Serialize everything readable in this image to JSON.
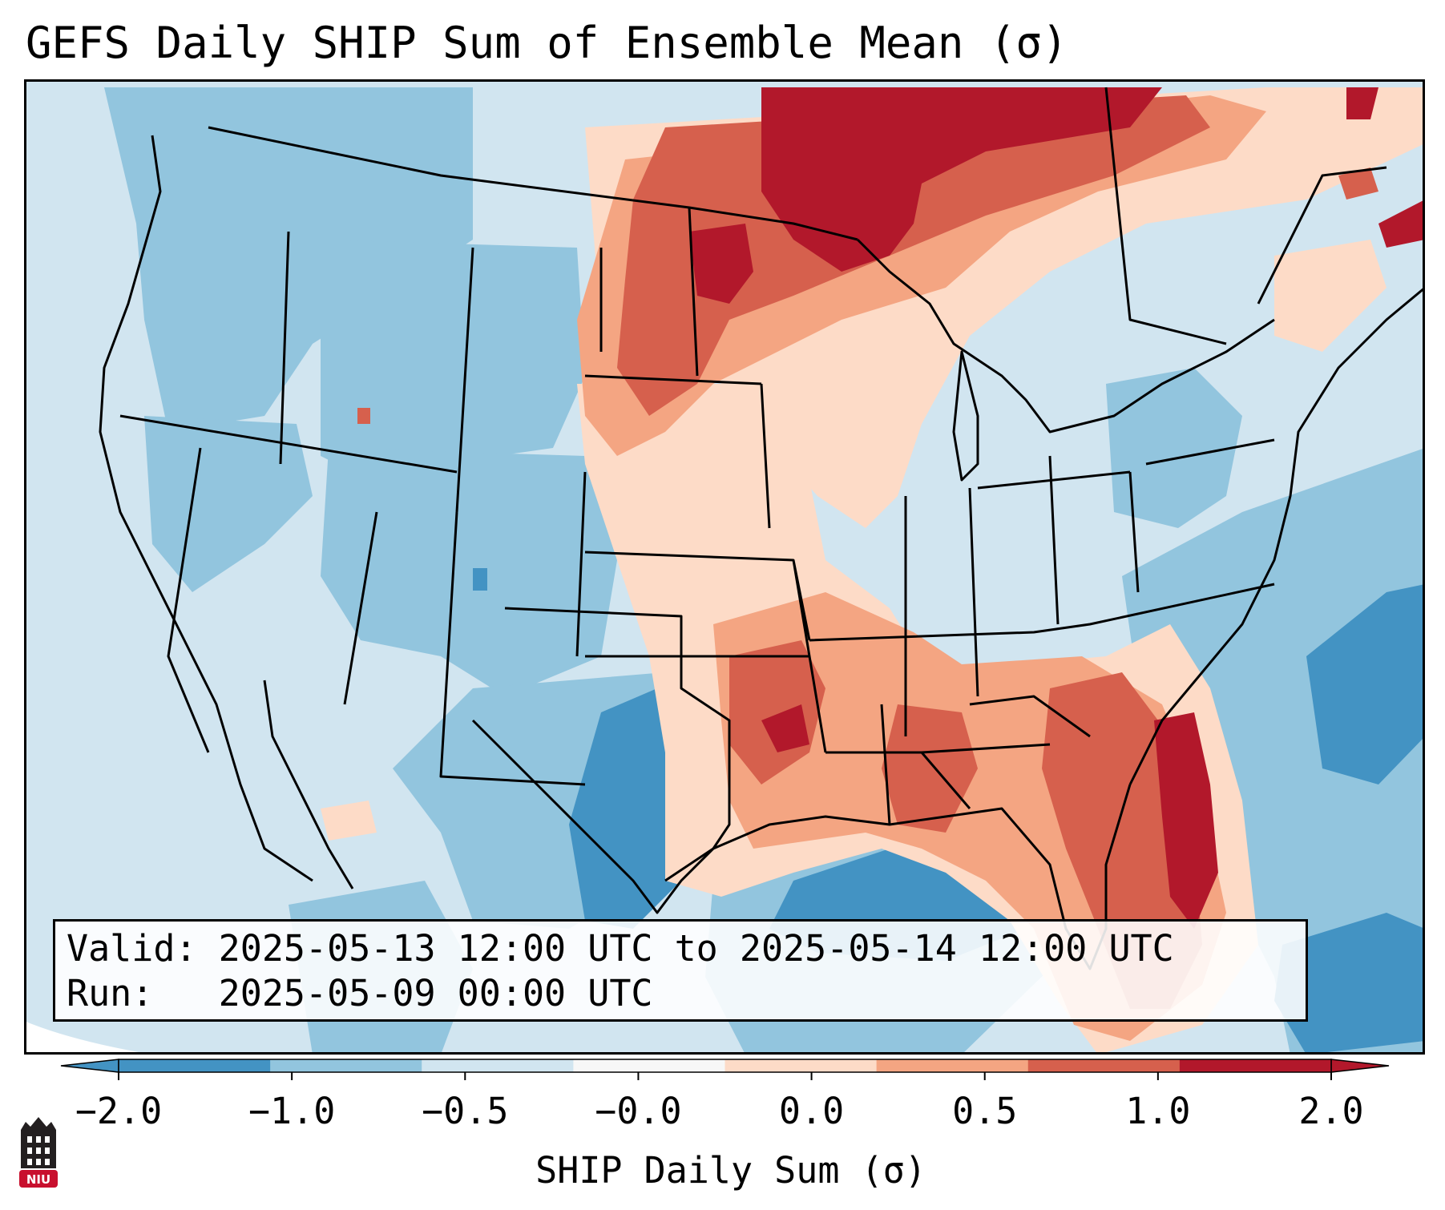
{
  "title": "GEFS Daily SHIP Sum of Ensemble Mean (σ)",
  "info": {
    "valid_label": "Valid:",
    "valid_value": "2025-05-13 12:00 UTC to 2025-05-14 12:00 UTC",
    "run_label": "Run:",
    "run_value": "2025-05-09 00:00 UTC"
  },
  "colorbar": {
    "label": "SHIP Daily Sum (σ)",
    "ticks": [
      "−2.0",
      "−1.0",
      "−0.5",
      "−0.0",
      "0.0",
      "0.5",
      "1.0",
      "2.0"
    ],
    "colors": [
      "#4393c3",
      "#92c5de",
      "#d1e5f0",
      "#f7f7f7",
      "#fddbc7",
      "#f4a582",
      "#d6604d",
      "#b2182b"
    ],
    "extend": "both"
  },
  "logo": {
    "text": "NIU",
    "color": "#c8102e"
  },
  "colors": {
    "ocean": "#d1e5f0",
    "strong_negative": "#4393c3",
    "moderate_negative": "#92c5de",
    "weak_negative": "#d1e5f0",
    "weak_positive": "#fddbc7",
    "moderate_positive": "#f4a582",
    "strong_positive": "#d6604d",
    "very_strong_positive": "#b2182b",
    "boundaries": "#000000"
  }
}
